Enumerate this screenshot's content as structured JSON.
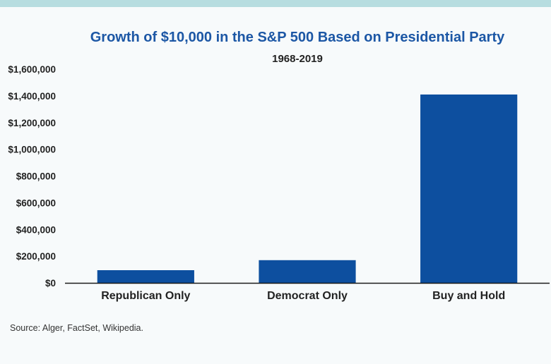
{
  "chart_data": {
    "type": "bar",
    "title": "Growth of $10,000 in the S&P 500 Based on Presidential Party",
    "subtitle": "1968-2019",
    "categories": [
      "Republican Only",
      "Democrat Only",
      "Buy and Hold"
    ],
    "values": [
      95000,
      170000,
      1410000
    ],
    "ylim": [
      0,
      1600000
    ],
    "yticks": [
      0,
      200000,
      400000,
      600000,
      800000,
      1000000,
      1200000,
      1400000,
      1600000
    ],
    "ytick_labels": [
      "$0",
      "$200,000",
      "$400,000",
      "$600,000",
      "$800,000",
      "$1,000,000",
      "$1,200,000",
      "$1,400,000",
      "$1,600,000"
    ],
    "grid": false,
    "bar_color": "#0d4f9f"
  },
  "source": "Source: Alger, FactSet, Wikipedia."
}
